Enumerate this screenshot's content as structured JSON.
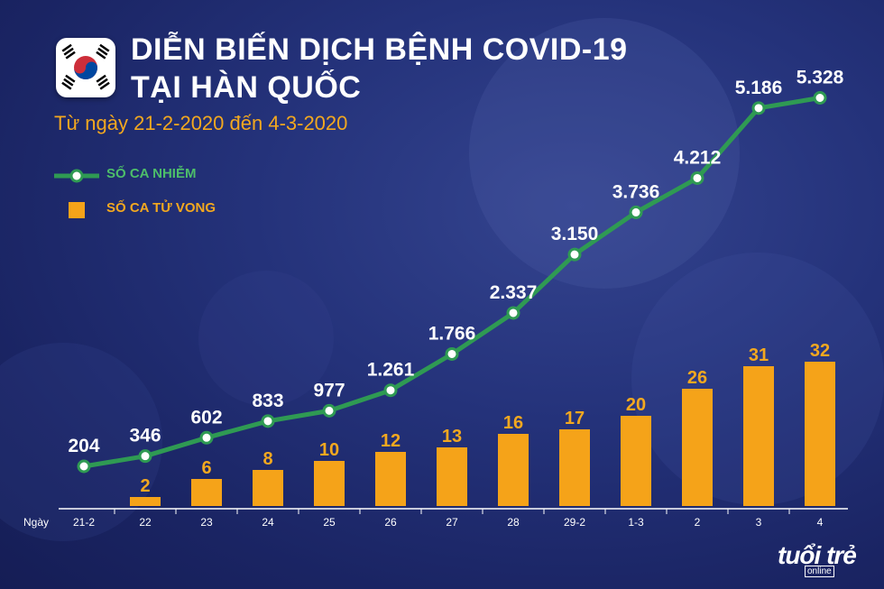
{
  "header": {
    "title_line1": "DIỄN BIẾN DỊCH BỆNH COVID-19",
    "title_line2": "TẠI HÀN QUỐC",
    "subtitle": "Từ ngày 21-2-2020 đến 4-3-2020"
  },
  "legend": {
    "infected": "SỐ CA NHIỄM",
    "deaths": "SỐ CA TỬ VONG"
  },
  "brand": {
    "name": "tuổi trẻ",
    "sub": "online"
  },
  "colors": {
    "line": "#2f9a53",
    "bar": "#f5a319",
    "label_line": "#ffffff",
    "label_bar": "#f3a81f"
  },
  "chart_data": {
    "type": "bar+line",
    "x_axis_label": "Ngày",
    "categories": [
      "21-2",
      "22",
      "23",
      "24",
      "25",
      "26",
      "27",
      "28",
      "29-2",
      "1-3",
      "2",
      "3",
      "4"
    ],
    "series": [
      {
        "name": "SỐ CA NHIỄM",
        "type": "line",
        "values": [
          204,
          346,
          602,
          833,
          977,
          1261,
          1766,
          2337,
          3150,
          3736,
          4212,
          5186,
          5328
        ],
        "labels": [
          "204",
          "346",
          "602",
          "833",
          "977",
          "1.261",
          "1.766",
          "2.337",
          "3.150",
          "3.736",
          "4.212",
          "5.186",
          "5.328"
        ]
      },
      {
        "name": "SỐ CA TỬ VONG",
        "type": "bar",
        "values": [
          0,
          2,
          6,
          8,
          10,
          12,
          13,
          16,
          17,
          20,
          26,
          31,
          32
        ],
        "labels": [
          "",
          "2",
          "6",
          "8",
          "10",
          "12",
          "13",
          "16",
          "17",
          "20",
          "26",
          "31",
          "32"
        ]
      }
    ]
  }
}
